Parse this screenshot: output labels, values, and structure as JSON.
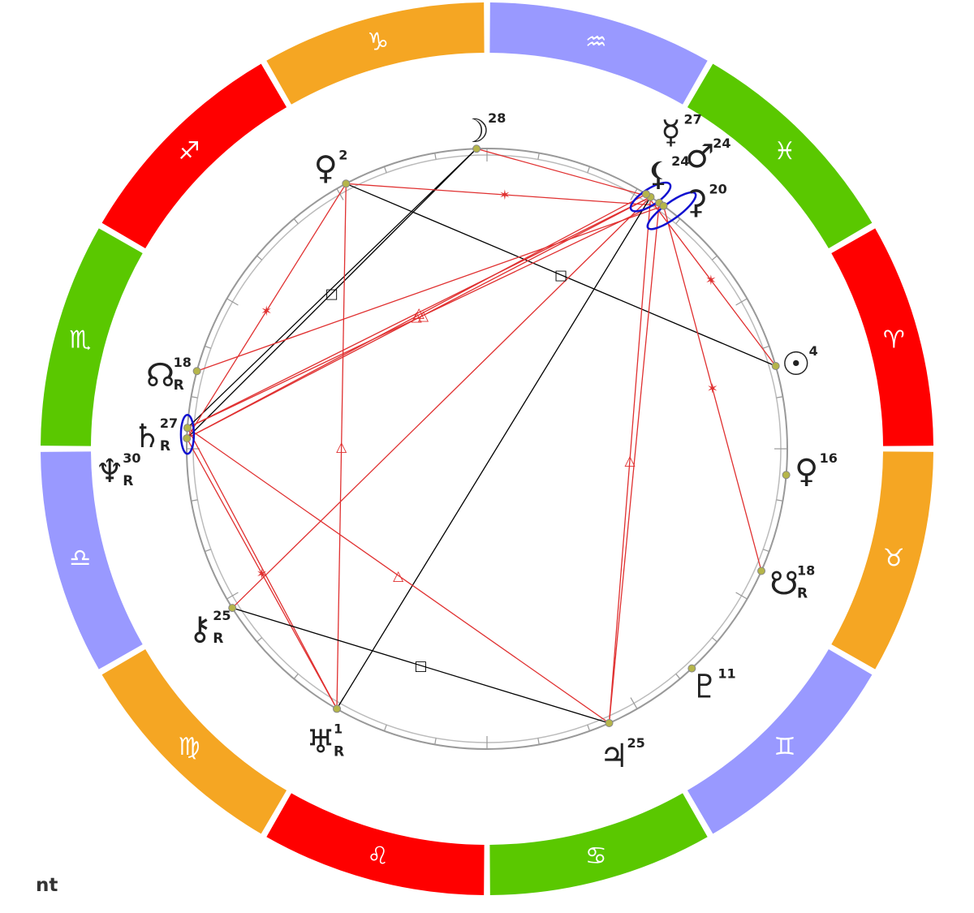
{
  "footer": {
    "label": "nt"
  },
  "signs": [
    {
      "name": "capricorn",
      "glyph": "♑",
      "color": "#f5a623"
    },
    {
      "name": "sagittarius",
      "glyph": "♐",
      "color": "#ff0000"
    },
    {
      "name": "scorpio",
      "glyph": "♏",
      "color": "#5ac800"
    },
    {
      "name": "libra",
      "glyph": "♎",
      "color": "#9999ff"
    },
    {
      "name": "virgo",
      "glyph": "♍",
      "color": "#f5a623"
    },
    {
      "name": "leo",
      "glyph": "♌",
      "color": "#ff0000"
    },
    {
      "name": "cancer",
      "glyph": "♋",
      "color": "#5ac800"
    },
    {
      "name": "gemini",
      "glyph": "♊",
      "color": "#9999ff"
    },
    {
      "name": "taurus",
      "glyph": "♉",
      "color": "#f5a623"
    },
    {
      "name": "aries",
      "glyph": "♈",
      "color": "#ff0000"
    },
    {
      "name": "pisces",
      "glyph": "♓",
      "color": "#5ac800"
    },
    {
      "name": "aquarius",
      "glyph": "♒",
      "color": "#9999ff"
    }
  ],
  "planets": [
    {
      "name": "moon",
      "glyph": "☽",
      "degree": "28",
      "retrograde": ""
    },
    {
      "name": "venus",
      "glyph": "♀",
      "degree": "2",
      "retrograde": ""
    },
    {
      "name": "mercury",
      "glyph": "☿",
      "degree": "27",
      "retrograde": ""
    },
    {
      "name": "mars",
      "glyph": "♂",
      "degree": "24",
      "retrograde": ""
    },
    {
      "name": "lilith",
      "glyph": "⚸",
      "degree": "24",
      "retrograde": ""
    },
    {
      "name": "selena",
      "glyph": "⚳",
      "degree": "20",
      "retrograde": ""
    },
    {
      "name": "sun",
      "glyph": "☉",
      "degree": "4",
      "retrograde": ""
    },
    {
      "name": "venus-2",
      "glyph": "♀",
      "degree": "16",
      "retrograde": ""
    },
    {
      "name": "south-node",
      "glyph": "☋",
      "degree": "18",
      "retrograde": "R"
    },
    {
      "name": "pluto",
      "glyph": "♇",
      "degree": "11",
      "retrograde": ""
    },
    {
      "name": "jupiter",
      "glyph": "♃",
      "degree": "25",
      "retrograde": ""
    },
    {
      "name": "uranus",
      "glyph": "♅",
      "degree": "1",
      "retrograde": "R"
    },
    {
      "name": "chiron",
      "glyph": "⚷",
      "degree": "25",
      "retrograde": "R"
    },
    {
      "name": "neptune",
      "glyph": "♆",
      "degree": "30",
      "retrograde": "R"
    },
    {
      "name": "saturn",
      "glyph": "♄",
      "degree": "27",
      "retrograde": "R"
    },
    {
      "name": "north-node",
      "glyph": "☊",
      "degree": "18",
      "retrograde": "R"
    }
  ],
  "colors": {
    "aspect_harmonic": "#e03030",
    "aspect_tense": "#000000",
    "planet_dot": "#b5b54a",
    "conjunction_ring": "#1010d0",
    "inner_ring": "#999999"
  }
}
